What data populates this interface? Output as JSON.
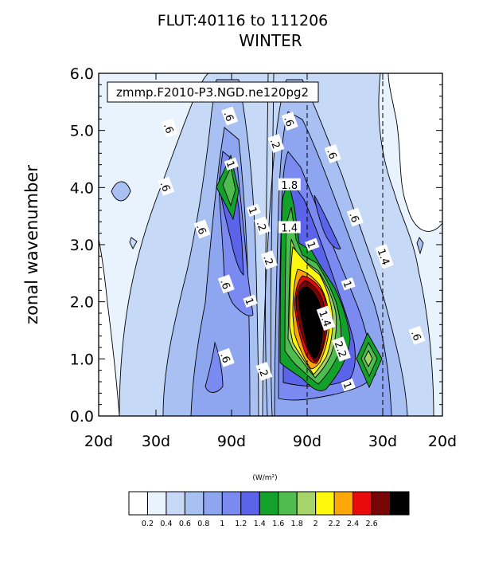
{
  "chart_data": {
    "type": "contour",
    "title": "FLUT:40116 to 111206",
    "subtitle": "WINTER",
    "annotation": "zmmp.F2010-P3.NGD.ne120pg2",
    "xlabel": "",
    "ylabel": "zonal wavenumber",
    "ylim": [
      0,
      6
    ],
    "y_ticks": [
      "0.0",
      "1.0",
      "2.0",
      "3.0",
      "4.0",
      "5.0",
      "6.0"
    ],
    "x_ticks": [
      "20d",
      "30d",
      "90d",
      "90d",
      "30d",
      "20d"
    ],
    "reference_lines_at_x_ticks": [
      "90d",
      "30d"
    ],
    "colorbar": {
      "units": "(W/m²)",
      "levels": [
        "0.2",
        "0.4",
        "0.6",
        "0.8",
        "1",
        "1.2",
        "1.4",
        "1.6",
        "1.8",
        "2",
        "2.2",
        "2.4",
        "2.6"
      ],
      "colors": [
        "#ffffff",
        "#e9f3fd",
        "#c6daf8",
        "#a9c0f3",
        "#8ea5ef",
        "#7b8af0",
        "#5b64e8",
        "#12a12a",
        "#4ebc4e",
        "#a6d36a",
        "#fdf80e",
        "#fda60a",
        "#e90b0b",
        "#760606",
        "#000000"
      ]
    },
    "contour_labels": [
      {
        "text": ".6"
      },
      {
        "text": ".6"
      },
      {
        "text": ".6"
      },
      {
        "text": ".6"
      },
      {
        "text": ".6"
      },
      {
        "text": ".6"
      },
      {
        "text": ".6"
      },
      {
        "text": ".6"
      },
      {
        "text": ".6"
      },
      {
        "text": ".6"
      },
      {
        "text": "1"
      },
      {
        "text": "1"
      },
      {
        "text": "1"
      },
      {
        "text": "1"
      },
      {
        "text": "1"
      },
      {
        "text": "1"
      },
      {
        "text": ".2"
      },
      {
        "text": ".2"
      },
      {
        "text": ".2"
      },
      {
        "text": ".2"
      },
      {
        "text": "1.4"
      },
      {
        "text": "1.8"
      },
      {
        "text": "1.4"
      },
      {
        "text": "1.4"
      },
      {
        "text": "2.2"
      }
    ]
  }
}
